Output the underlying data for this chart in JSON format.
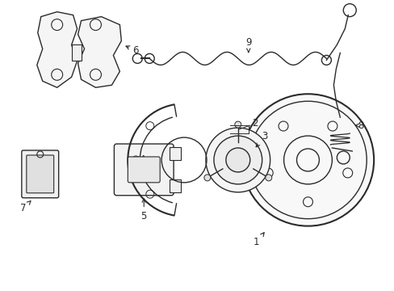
{
  "background": "#ffffff",
  "line_color": "#2a2a2a",
  "lw": 1.0,
  "fig_w": 4.89,
  "fig_h": 3.6,
  "dpi": 100
}
